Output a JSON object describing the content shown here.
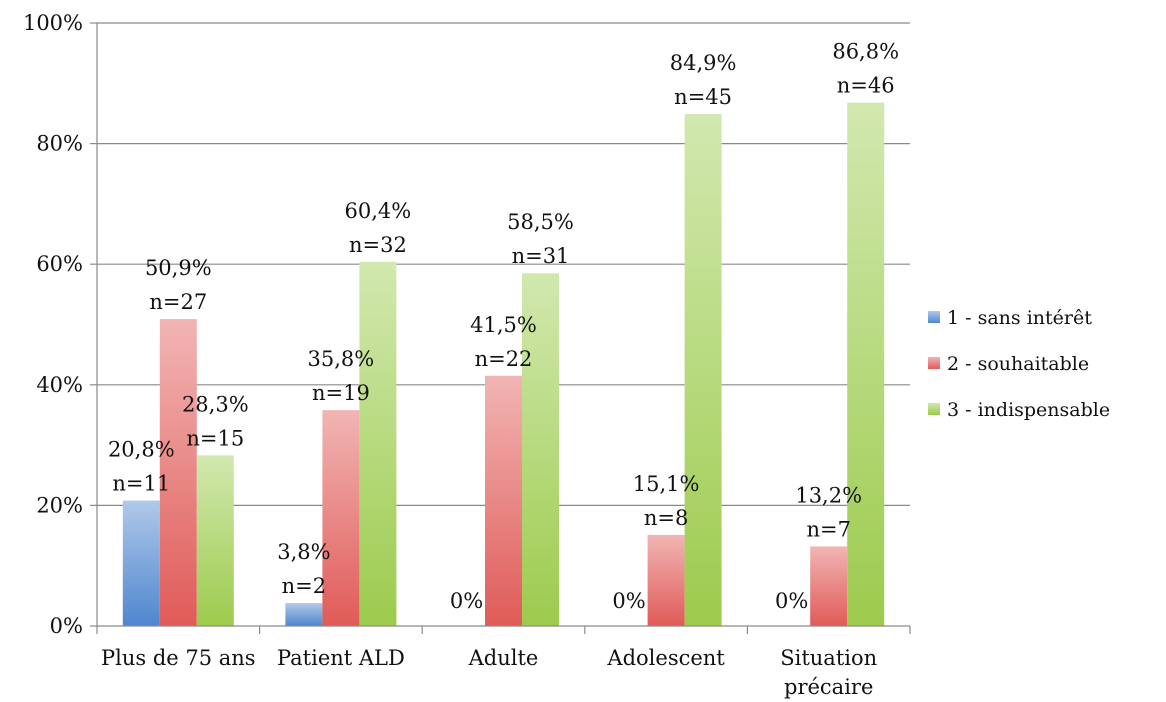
{
  "chart_data": {
    "type": "bar",
    "categories": [
      [
        "Plus de 75 ans"
      ],
      [
        "Patient ALD"
      ],
      [
        "Adulte"
      ],
      [
        "Adolescent"
      ],
      [
        "Situation",
        "précaire"
      ]
    ],
    "series": [
      {
        "name": "1 - sans intérêt",
        "color": "#4f86cf",
        "values": [
          20.8,
          3.8,
          0,
          0,
          0
        ],
        "labels": [
          [
            "20,8%",
            "n=11"
          ],
          [
            "3,8%",
            "n=2"
          ],
          [
            "0%"
          ],
          [
            "0%"
          ],
          [
            "0%"
          ]
        ]
      },
      {
        "name": "2 - souhaitable",
        "color": "#e05b58",
        "values": [
          50.9,
          35.8,
          41.5,
          15.1,
          13.2
        ],
        "labels": [
          [
            "50,9%",
            "n=27"
          ],
          [
            "35,8%",
            "n=19"
          ],
          [
            "41,5%",
            "n=22"
          ],
          [
            "15,1%",
            "n=8"
          ],
          [
            "13,2%",
            "n=7"
          ]
        ]
      },
      {
        "name": "3 - indispensable",
        "color": "#9ccb4d",
        "values": [
          28.3,
          60.4,
          58.5,
          84.9,
          86.8
        ],
        "labels": [
          [
            "28,3%",
            "n=15"
          ],
          [
            "60,4%",
            "n=32"
          ],
          [
            "58,5%",
            "n=31"
          ],
          [
            "84,9%",
            "n=45"
          ],
          [
            "86,8%",
            "n=46"
          ]
        ]
      }
    ],
    "y_ticks": [
      "0%",
      "20%",
      "40%",
      "60%",
      "80%",
      "100%"
    ],
    "ylim": [
      0,
      100
    ],
    "grid": true,
    "legend": "right"
  }
}
